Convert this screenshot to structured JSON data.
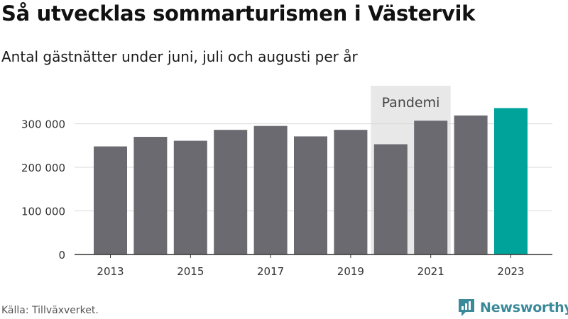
{
  "header": {
    "title": "Så utvecklas sommarturismen i Västervik",
    "subtitle": "Antal gästnätter under juni, juli och augusti per år"
  },
  "footer": {
    "source": "Källa: Tillväxverket.",
    "brand": "Newsworthy"
  },
  "colors": {
    "bar": "#6b6a70",
    "highlight": "#00a39a",
    "band": "#e8e8e8",
    "grid": "#d9d9d9",
    "axis": "#333333"
  },
  "chart_data": {
    "type": "bar",
    "title": "Så utvecklas sommarturismen i Västervik",
    "subtitle": "Antal gästnätter under juni, juli och augusti per år",
    "categories": [
      "2013",
      "2014",
      "2015",
      "2016",
      "2017",
      "2018",
      "2019",
      "2020",
      "2021",
      "2022",
      "2023"
    ],
    "values": [
      248000,
      270000,
      261000,
      286000,
      295000,
      271000,
      286000,
      253000,
      307000,
      319000,
      336000
    ],
    "highlight_category": "2023",
    "ylim": [
      0,
      340000
    ],
    "yticks": [
      0,
      100000,
      200000,
      300000
    ],
    "ytick_labels": [
      "0",
      "100 000",
      "200 000",
      "300 000"
    ],
    "xtick_labels": [
      "2013",
      "2015",
      "2017",
      "2019",
      "2021",
      "2023"
    ],
    "annotations": [
      {
        "label": "Pandemi",
        "from": "2020",
        "to": "2021"
      }
    ],
    "grid": true,
    "legend": "none"
  }
}
